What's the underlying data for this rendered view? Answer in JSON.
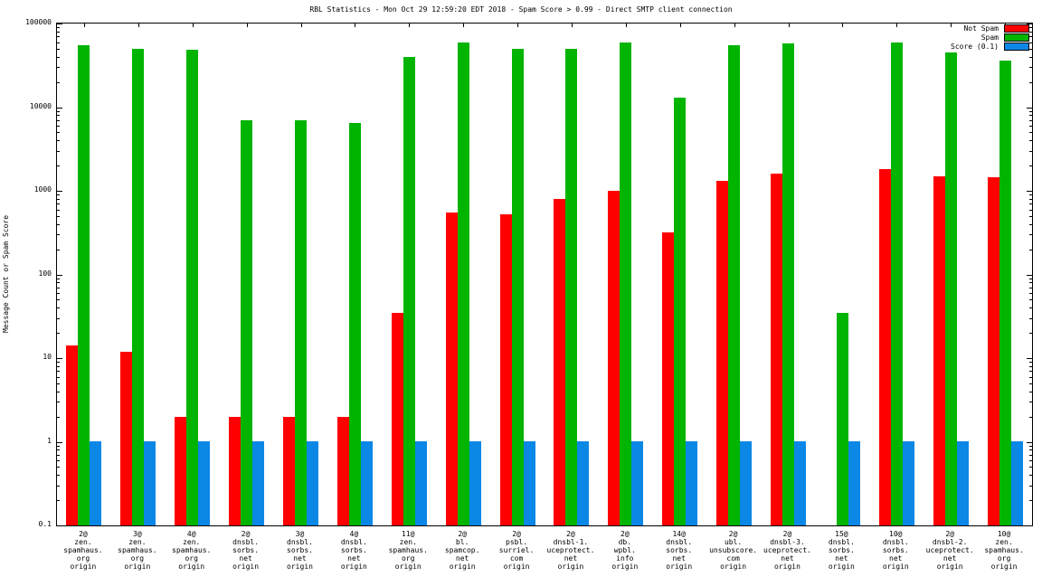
{
  "chart_data": {
    "type": "bar",
    "title": "RBL Statistics - Mon Oct 29 12:59:20 EDT 2018 - Spam Score > 0.99 - Direct SMTP client connection",
    "ylabel": "Message Count or Spam Score",
    "xlabel": "",
    "yscale": "log",
    "ylim": [
      0.1,
      100000
    ],
    "ytick_labels": [
      "0.1",
      "1",
      "10",
      "100",
      "1000",
      "10000",
      "100000"
    ],
    "grid": false,
    "legend_position": "top-right",
    "legend": [
      {
        "label": "Not Spam",
        "color": "#ff0000"
      },
      {
        "label": "Spam",
        "color": "#00b400"
      },
      {
        "label": "Score (0.1)",
        "color": "#0b87e6"
      }
    ],
    "categories": [
      [
        "2@",
        "zen.",
        "spamhaus.",
        "org",
        "origin"
      ],
      [
        "3@",
        "zen.",
        "spamhaus.",
        "org",
        "origin"
      ],
      [
        "4@",
        "zen.",
        "spamhaus.",
        "org",
        "origin"
      ],
      [
        "2@",
        "dnsbl.",
        "sorbs.",
        "net",
        "origin"
      ],
      [
        "3@",
        "dnsbl.",
        "sorbs.",
        "net",
        "origin"
      ],
      [
        "4@",
        "dnsbl.",
        "sorbs.",
        "net",
        "origin"
      ],
      [
        "11@",
        "zen.",
        "spamhaus.",
        "org",
        "origin"
      ],
      [
        "2@",
        "bl.",
        "spamcop.",
        "net",
        "origin"
      ],
      [
        "2@",
        "psbl.",
        "surriel.",
        "com",
        "origin"
      ],
      [
        "2@",
        "dnsbl-1.",
        "uceprotect.",
        "net",
        "origin"
      ],
      [
        "2@",
        "db.",
        "wpbl.",
        "info",
        "origin"
      ],
      [
        "14@",
        "dnsbl.",
        "sorbs.",
        "net",
        "origin"
      ],
      [
        "2@",
        "ubl.",
        "unsubscore.",
        "com",
        "origin"
      ],
      [
        "2@",
        "dnsbl-3.",
        "uceprotect.",
        "net",
        "origin"
      ],
      [
        "15@",
        "dnsbl.",
        "sorbs.",
        "net",
        "origin"
      ],
      [
        "10@",
        "dnsbl.",
        "sorbs.",
        "net",
        "origin"
      ],
      [
        "2@",
        "dnsbl-2.",
        "uceprotect.",
        "net",
        "origin"
      ],
      [
        "10@",
        "zen.",
        "spamhaus.",
        "org",
        "origin"
      ]
    ],
    "series": [
      {
        "name": "Not Spam",
        "color": "#ff0000",
        "values": [
          14,
          12,
          2,
          2,
          2,
          2,
          35,
          550,
          520,
          800,
          1000,
          320,
          1300,
          1600,
          0,
          1800,
          1500,
          1450
        ]
      },
      {
        "name": "Spam",
        "color": "#00b400",
        "values": [
          55000,
          50000,
          48000,
          7000,
          7000,
          6500,
          40000,
          60000,
          50000,
          50000,
          60000,
          13000,
          55000,
          58000,
          35,
          60000,
          45000,
          36000
        ]
      },
      {
        "name": "Score (0.1)",
        "color": "#0b87e6",
        "values": [
          1,
          1,
          1,
          1,
          1,
          1,
          1,
          1,
          1,
          1,
          1,
          1,
          1,
          1,
          1,
          1,
          1,
          1
        ]
      }
    ]
  }
}
